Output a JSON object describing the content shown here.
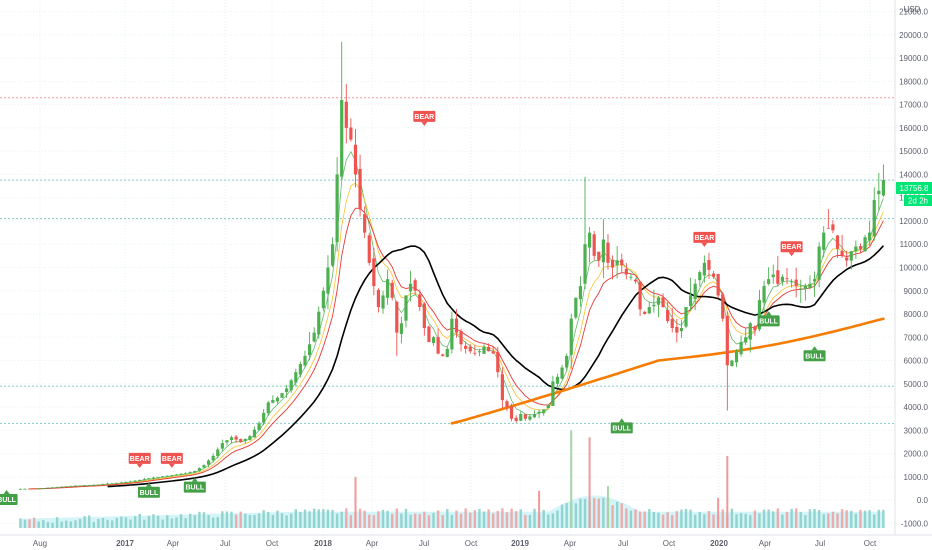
{
  "chart_data": {
    "type": "candlestick",
    "currency_label": "USD",
    "y_ticks": [
      "21000.0",
      "20000.0",
      "19000.0",
      "18000.0",
      "17000.0",
      "16000.0",
      "15000.0",
      "14000.0",
      "13000.0",
      "12000.0",
      "11000.0",
      "10000.0",
      "9000.0",
      "8000.0",
      "7000.0",
      "6000.0",
      "5000.0",
      "4000.0",
      "3000.0",
      "2000.0",
      "1000.0",
      "0.0",
      "-1000.0"
    ],
    "ylim": [
      -1500,
      21500
    ],
    "x_ticks": [
      "Aug",
      "2017",
      "Apr",
      "Jul",
      "Oct",
      "2018",
      "Apr",
      "Jul",
      "Oct",
      "2019",
      "Apr",
      "Jul",
      "Oct",
      "2020",
      "Apr",
      "Jul",
      "Oct"
    ],
    "last_price": "13756.8",
    "countdown": "2d 2h",
    "colors": {
      "up": "#26a69a",
      "up_candle": "#4caf50",
      "down": "#ef5350",
      "ma_black": "#000000",
      "ma_orange": "#f57c00",
      "ma_red": "#e53935",
      "ma_yellow": "#fbc02d",
      "ma_green": "#66bb6a",
      "volume": "#b2ebf2",
      "price_badge": "#00e676"
    },
    "horizontal_levels": [
      {
        "value": 17300,
        "color": "#ef9a9a"
      },
      {
        "value": 13756.8,
        "color": "#80cbc4"
      },
      {
        "value": 12100,
        "color": "#80cbc4"
      },
      {
        "value": 4900,
        "color": "#80cbc4"
      },
      {
        "value": 3300,
        "color": "#80cbc4"
      }
    ],
    "signals": [
      {
        "label": "BULL",
        "type": "bull",
        "time": -3,
        "value": 520
      },
      {
        "label": "BEAR",
        "type": "bear",
        "time": 26,
        "value": 1300
      },
      {
        "label": "BULL",
        "type": "bull",
        "time": 28,
        "value": 830
      },
      {
        "label": "BEAR",
        "type": "bear",
        "time": 33,
        "value": 1300
      },
      {
        "label": "BULL",
        "type": "bull",
        "time": 38,
        "value": 1050
      },
      {
        "label": "BEAR",
        "type": "bear",
        "time": 88,
        "value": 16000
      },
      {
        "label": "BULL",
        "type": "bull",
        "time": 131,
        "value": 3600
      },
      {
        "label": "BEAR",
        "type": "bear",
        "time": 149,
        "value": 10800
      },
      {
        "label": "BULL",
        "type": "bull",
        "time": 163,
        "value": 8200
      },
      {
        "label": "BEAR",
        "type": "bear",
        "time": 168,
        "value": 10400
      },
      {
        "label": "BULL",
        "type": "bull",
        "time": 173,
        "value": 6700
      }
    ],
    "price_anchors": [
      [
        0,
        480
      ],
      [
        4,
        500
      ],
      [
        8,
        560
      ],
      [
        12,
        620
      ],
      [
        16,
        650
      ],
      [
        20,
        720
      ],
      [
        24,
        800
      ],
      [
        28,
        940
      ],
      [
        32,
        1050
      ],
      [
        36,
        1150
      ],
      [
        38,
        1250
      ],
      [
        40,
        1500
      ],
      [
        42,
        1900
      ],
      [
        44,
        2450
      ],
      [
        46,
        2700
      ],
      [
        48,
        2500
      ],
      [
        50,
        2750
      ],
      [
        52,
        3300
      ],
      [
        54,
        4200
      ],
      [
        56,
        4400
      ],
      [
        58,
        4800
      ],
      [
        60,
        5500
      ],
      [
        62,
        6200
      ],
      [
        64,
        7200
      ],
      [
        66,
        9000
      ],
      [
        68,
        11000
      ],
      [
        69,
        14000
      ],
      [
        70,
        17200
      ],
      [
        71,
        16000
      ],
      [
        72,
        15500
      ],
      [
        73,
        14000
      ],
      [
        74,
        12500
      ],
      [
        75,
        11500
      ],
      [
        76,
        10200
      ],
      [
        77,
        9200
      ],
      [
        78,
        8300
      ],
      [
        79,
        8800
      ],
      [
        80,
        9500
      ],
      [
        81,
        8700
      ],
      [
        82,
        7200
      ],
      [
        83,
        7600
      ],
      [
        84,
        8800
      ],
      [
        85,
        9300
      ],
      [
        86,
        9000
      ],
      [
        87,
        8300
      ],
      [
        88,
        7400
      ],
      [
        89,
        6800
      ],
      [
        90,
        7000
      ],
      [
        91,
        6300
      ],
      [
        92,
        6200
      ],
      [
        93,
        6500
      ],
      [
        94,
        7800
      ],
      [
        95,
        7200
      ],
      [
        96,
        6700
      ],
      [
        97,
        6500
      ],
      [
        98,
        6400
      ],
      [
        99,
        6300
      ],
      [
        100,
        6400
      ],
      [
        101,
        6600
      ],
      [
        102,
        6400
      ],
      [
        103,
        6300
      ],
      [
        104,
        5500
      ],
      [
        105,
        4300
      ],
      [
        106,
        4000
      ],
      [
        107,
        3500
      ],
      [
        108,
        3400
      ],
      [
        109,
        3700
      ],
      [
        110,
        3500
      ],
      [
        111,
        3600
      ],
      [
        112,
        3700
      ],
      [
        113,
        3800
      ],
      [
        114,
        3900
      ],
      [
        115,
        4100
      ],
      [
        116,
        5100
      ],
      [
        117,
        5300
      ],
      [
        118,
        5700
      ],
      [
        119,
        6200
      ],
      [
        120,
        7800
      ],
      [
        121,
        8700
      ],
      [
        122,
        9200
      ],
      [
        123,
        11000
      ],
      [
        124,
        11500
      ],
      [
        125,
        10500
      ],
      [
        126,
        10300
      ],
      [
        127,
        11200
      ],
      [
        128,
        10200
      ],
      [
        129,
        10000
      ],
      [
        130,
        10300
      ],
      [
        131,
        10100
      ],
      [
        132,
        9700
      ],
      [
        133,
        9600
      ],
      [
        134,
        9400
      ],
      [
        135,
        8200
      ],
      [
        136,
        8000
      ],
      [
        137,
        8300
      ],
      [
        138,
        8400
      ],
      [
        139,
        8700
      ],
      [
        140,
        8300
      ],
      [
        141,
        7700
      ],
      [
        142,
        7400
      ],
      [
        143,
        7200
      ],
      [
        144,
        7400
      ],
      [
        145,
        8300
      ],
      [
        146,
        8800
      ],
      [
        147,
        9300
      ],
      [
        148,
        9800
      ],
      [
        149,
        10200
      ],
      [
        150,
        9900
      ],
      [
        151,
        9600
      ],
      [
        152,
        8800
      ],
      [
        153,
        7800
      ],
      [
        154,
        5800
      ],
      [
        155,
        6000
      ],
      [
        156,
        6400
      ],
      [
        157,
        6800
      ],
      [
        158,
        7000
      ],
      [
        159,
        7600
      ],
      [
        160,
        7300
      ],
      [
        161,
        8600
      ],
      [
        162,
        9200
      ],
      [
        163,
        9500
      ],
      [
        164,
        9700
      ],
      [
        165,
        9300
      ],
      [
        166,
        9600
      ],
      [
        167,
        9500
      ],
      [
        168,
        9400
      ],
      [
        169,
        9200
      ],
      [
        170,
        9100
      ],
      [
        171,
        9200
      ],
      [
        172,
        9300
      ],
      [
        173,
        9500
      ],
      [
        174,
        10900
      ],
      [
        175,
        11500
      ],
      [
        176,
        11700
      ],
      [
        177,
        11600
      ],
      [
        178,
        10800
      ],
      [
        179,
        10500
      ],
      [
        180,
        10300
      ],
      [
        181,
        10700
      ],
      [
        182,
        10900
      ],
      [
        183,
        10800
      ],
      [
        184,
        11300
      ],
      [
        185,
        11500
      ],
      [
        186,
        12900
      ],
      [
        187,
        13300
      ],
      [
        188,
        13756
      ]
    ],
    "volume_spikes": [
      {
        "time": 73,
        "value": 1200,
        "color": "red"
      },
      {
        "time": 113,
        "value": 600,
        "color": "red"
      },
      {
        "time": 120,
        "value": 3200,
        "color": "green"
      },
      {
        "time": 124,
        "value": 2900,
        "color": "red"
      },
      {
        "time": 128,
        "value": 800,
        "color": "green"
      },
      {
        "time": 152,
        "value": 300,
        "color": "red"
      },
      {
        "time": 154,
        "value": 2100,
        "color": "red"
      }
    ]
  }
}
